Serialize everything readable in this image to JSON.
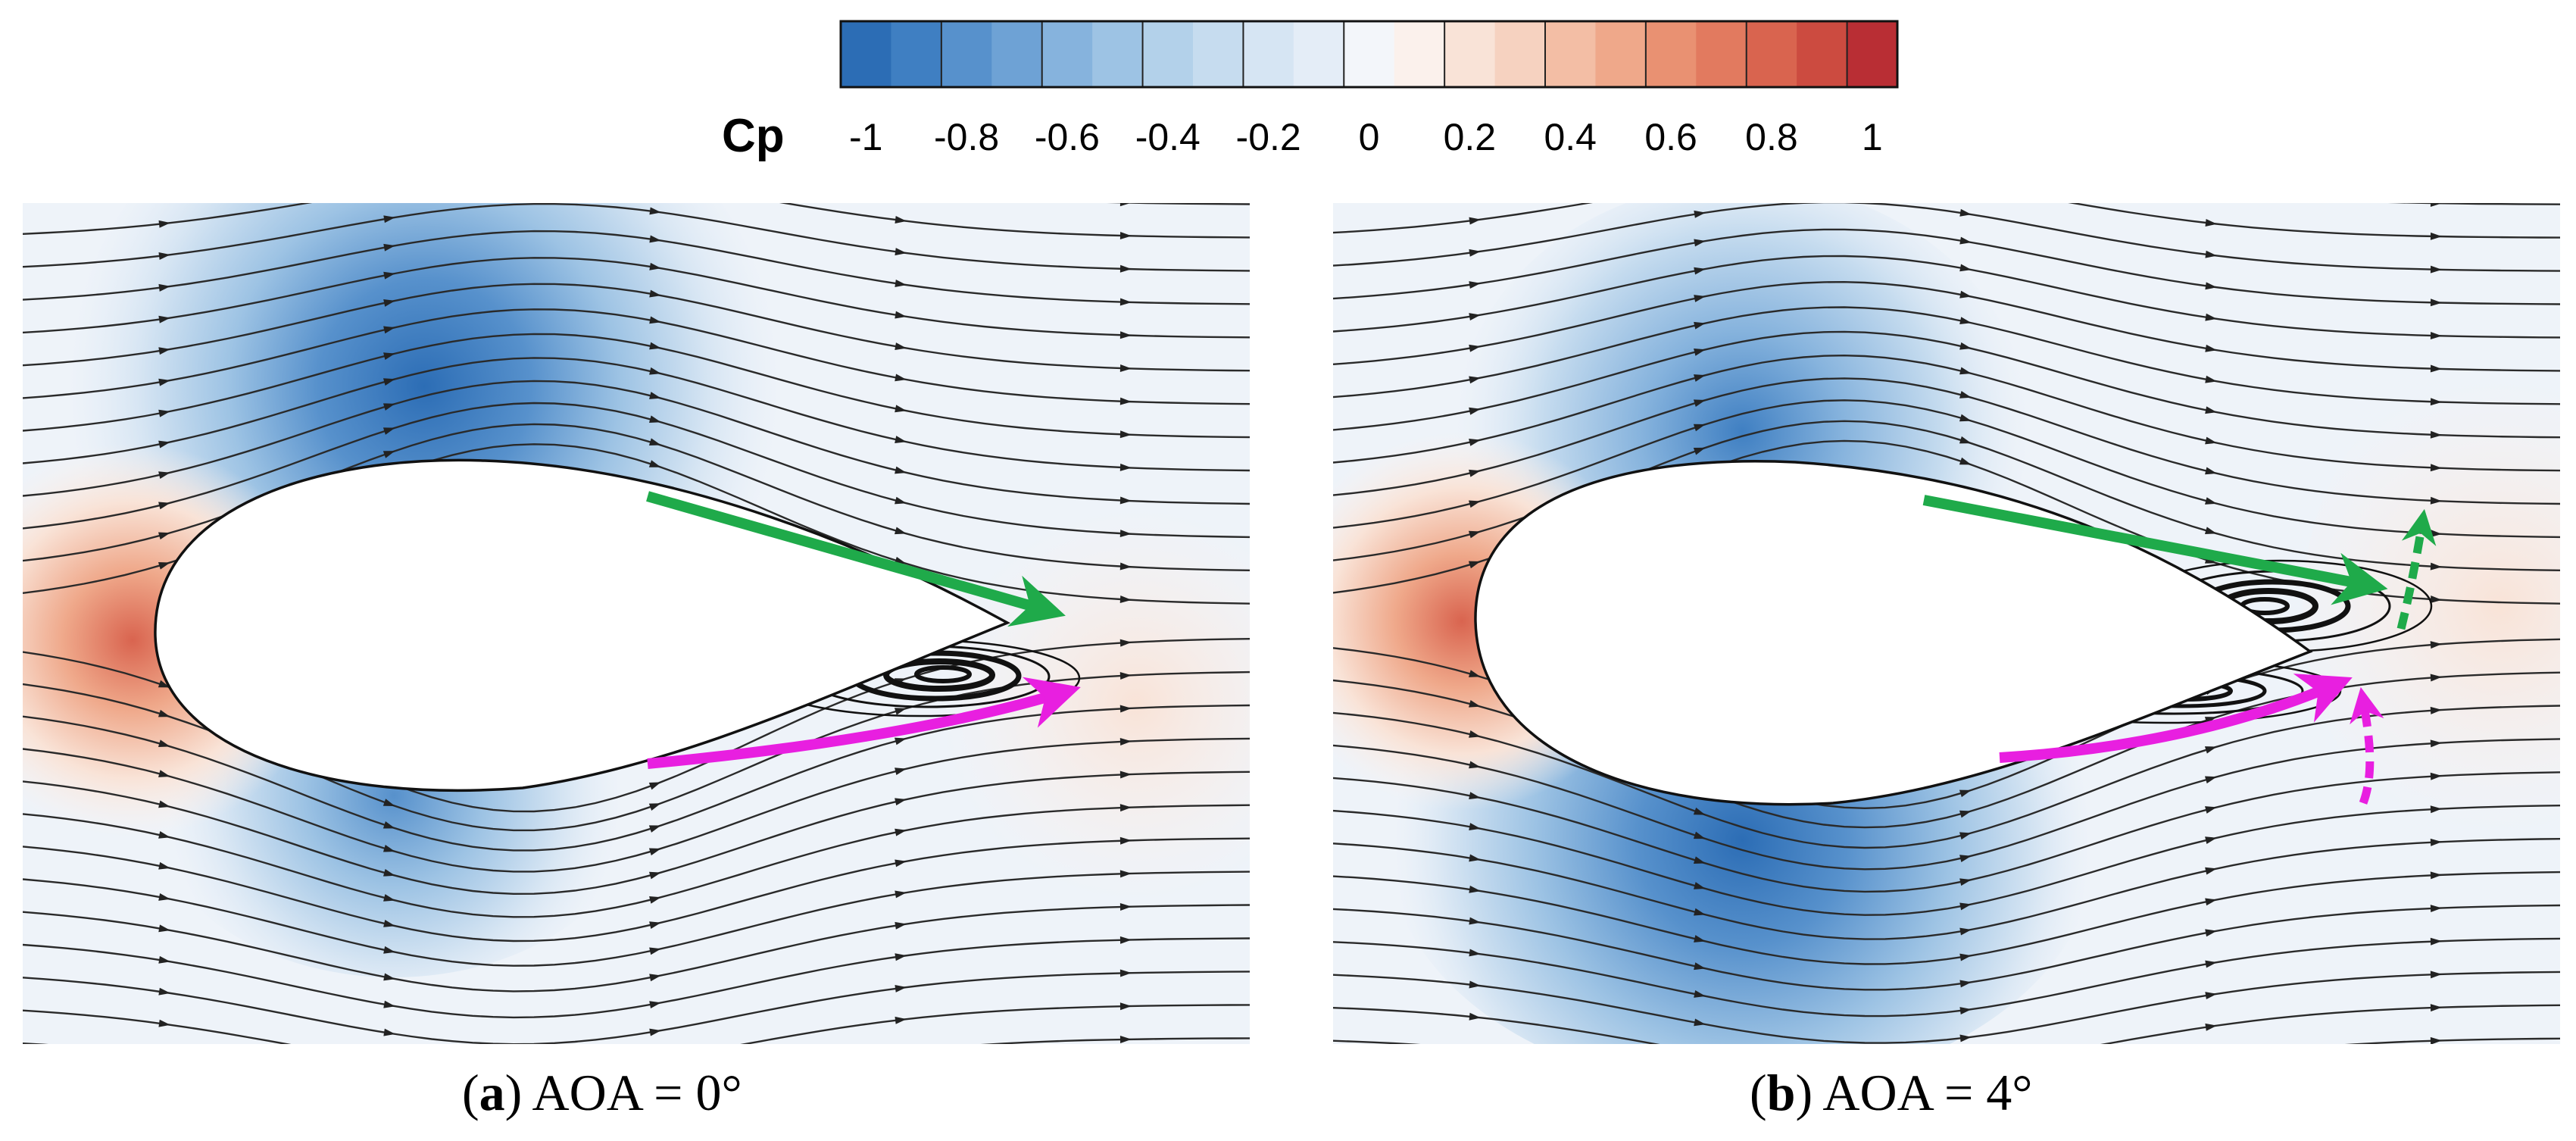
{
  "colorbar": {
    "title": "Cp",
    "ticks": [
      "-1",
      "-0.8",
      "-0.6",
      "-0.4",
      "-0.2",
      "0",
      "0.2",
      "0.4",
      "0.6",
      "0.8",
      "1"
    ],
    "range": [
      -1,
      1
    ],
    "levels": 21,
    "colors": [
      "#2c6db5",
      "#3f7fc2",
      "#5791cc",
      "#6ea2d5",
      "#86b3dd",
      "#9dc3e4",
      "#b3d1ea",
      "#c6dcef",
      "#d6e5f3",
      "#e4edf7",
      "#f3f6fa",
      "#fbf1ec",
      "#f9e3d7",
      "#f6d2c0",
      "#f3bea5",
      "#efa88a",
      "#e99172",
      "#e27a5f",
      "#d9644f",
      "#cc4b40",
      "#b92e34"
    ]
  },
  "panels": [
    {
      "id": "a",
      "caption_open": "(",
      "caption_letter": "a",
      "caption_text": ") AOA = 0°",
      "aoa_deg": 0
    },
    {
      "id": "b",
      "caption_open": "(",
      "caption_letter": "b",
      "caption_text": ") AOA = 4°",
      "aoa_deg": 4
    }
  ],
  "annotations": {
    "upper_arrow_color": "#1faa4a",
    "lower_arrow_color": "#e81fe0"
  }
}
